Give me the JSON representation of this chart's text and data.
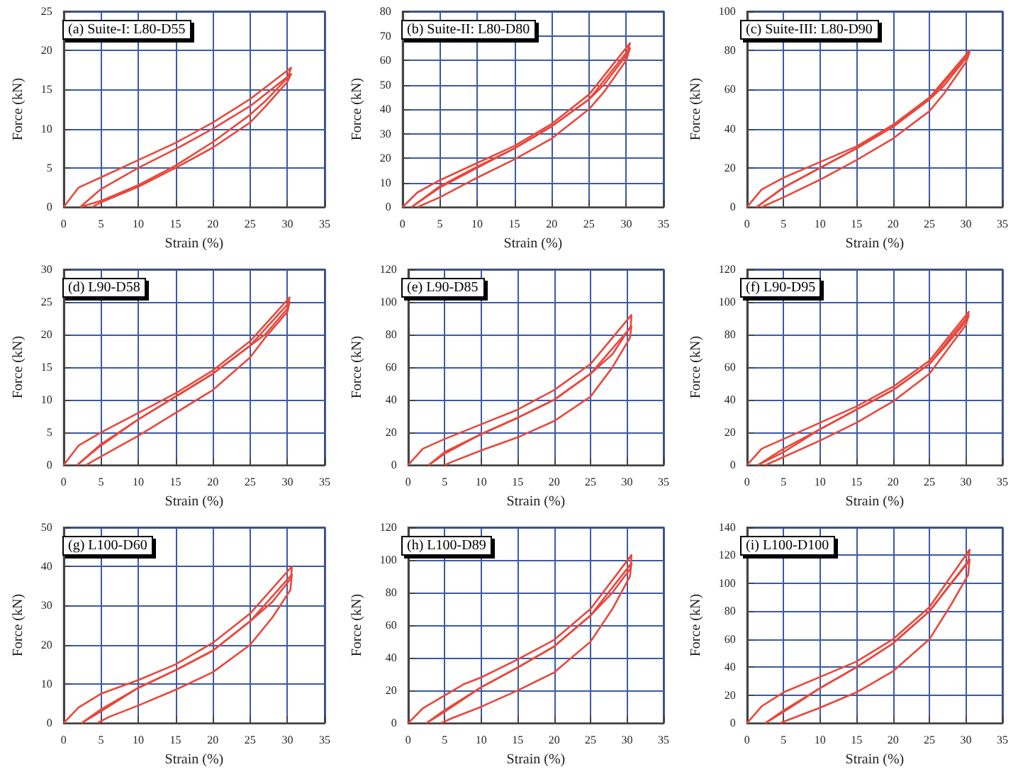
{
  "chart_data": [
    {
      "type": "line",
      "title": "(a) Suite-I: L80-D55",
      "xlabel": "Strain (%)",
      "ylabel": "Force (kN)",
      "xlim": [
        0,
        35
      ],
      "xticks": [
        0,
        5,
        10,
        15,
        20,
        25,
        30,
        35
      ],
      "ylim": [
        0,
        25
      ],
      "yticks": [
        0,
        5,
        10,
        15,
        20,
        25
      ],
      "grid": true,
      "marker": "none",
      "series": [
        {
          "color": "#e8483c",
          "x": [
            0,
            2,
            5,
            10,
            15,
            20,
            25,
            30.5,
            30,
            27,
            25,
            20,
            15,
            10,
            5,
            2.2
          ],
          "values": [
            0,
            2.5,
            3.8,
            6,
            8.2,
            10.8,
            13.8,
            17.8,
            16.5,
            13.5,
            11.8,
            8.3,
            5.3,
            2.8,
            0.8,
            0
          ]
        },
        {
          "color": "#e8483c",
          "x": [
            2.2,
            5,
            10,
            15,
            20,
            25,
            30.5,
            30,
            27,
            25,
            20,
            15,
            10,
            5,
            3.8
          ],
          "values": [
            0,
            2.3,
            5,
            7.4,
            10,
            12.9,
            17,
            16,
            12.8,
            10.8,
            7.6,
            5,
            2.6,
            0.6,
            0
          ]
        }
      ]
    },
    {
      "type": "line",
      "title": "(b) Suite-II: L80-D80",
      "xlabel": "Strain (%)",
      "ylabel": "Force (kN)",
      "xlim": [
        0,
        35
      ],
      "xticks": [
        0,
        5,
        10,
        15,
        20,
        25,
        30,
        35
      ],
      "ylim": [
        0,
        80
      ],
      "yticks": [
        0,
        10,
        20,
        30,
        40,
        50,
        60,
        70,
        80
      ],
      "grid": true,
      "marker": "none",
      "series": [
        {
          "color": "#e8483c",
          "x": [
            0,
            2,
            5,
            10,
            15,
            20,
            25,
            30.5,
            30,
            27,
            25,
            20,
            15,
            10,
            5,
            1.2
          ],
          "values": [
            0,
            6,
            11,
            18,
            25,
            34,
            46,
            67,
            62,
            50,
            44,
            33,
            24,
            16,
            8,
            0
          ]
        },
        {
          "color": "#e8483c",
          "x": [
            1.2,
            5,
            10,
            15,
            20,
            25,
            30.5,
            30,
            27,
            25,
            20,
            15,
            10,
            5,
            2
          ],
          "values": [
            0,
            8.5,
            16.5,
            24,
            33,
            44,
            65,
            60,
            47,
            40,
            28,
            19.5,
            12,
            4,
            0
          ]
        }
      ]
    },
    {
      "type": "line",
      "title": "(c) Suite-III: L80-D90",
      "xlabel": "Strain (%)",
      "ylabel": "Force (kN)",
      "xlim": [
        0,
        35
      ],
      "xticks": [
        0,
        5,
        10,
        15,
        20,
        25,
        30,
        35
      ],
      "ylim": [
        0,
        100
      ],
      "yticks": [
        0,
        20,
        40,
        60,
        80,
        100
      ],
      "grid": true,
      "marker": "none",
      "series": [
        {
          "color": "#e8483c",
          "x": [
            0,
            2,
            5,
            10,
            15,
            20,
            25,
            30.5,
            30,
            27,
            25,
            20,
            15,
            10,
            5,
            1.3
          ],
          "values": [
            0,
            9,
            15,
            23,
            31,
            42,
            56,
            80,
            76,
            62,
            55,
            41,
            30,
            20,
            10,
            0
          ]
        },
        {
          "color": "#e8483c",
          "x": [
            1.3,
            5,
            10,
            15,
            20,
            25,
            30.5,
            30,
            27,
            25,
            20,
            15,
            10,
            5,
            2
          ],
          "values": [
            0,
            10,
            20,
            30,
            41,
            55,
            79,
            74,
            58,
            49,
            35,
            24,
            14,
            5,
            0
          ]
        }
      ]
    },
    {
      "type": "line",
      "title": "(d) L90-D58",
      "xlabel": "Strain (%)",
      "ylabel": "Force (kN)",
      "xlim": [
        0,
        35
      ],
      "xticks": [
        0,
        5,
        10,
        15,
        20,
        25,
        30,
        35
      ],
      "ylim": [
        0,
        30
      ],
      "yticks": [
        0,
        5,
        10,
        15,
        20,
        25,
        30
      ],
      "grid": true,
      "marker": "none",
      "series": [
        {
          "color": "#e8483c",
          "x": [
            0,
            2,
            5,
            10,
            15,
            20,
            25,
            30.3,
            30,
            27,
            25,
            20,
            15,
            10,
            5,
            1.8
          ],
          "values": [
            0,
            3,
            5,
            8,
            11,
            14.5,
            19,
            25.7,
            24,
            20,
            18.3,
            14,
            10.5,
            7,
            3,
            0
          ]
        },
        {
          "color": "#e8483c",
          "x": [
            1.8,
            5,
            10,
            15,
            20,
            25,
            30.3,
            30,
            27,
            25,
            20,
            15,
            10,
            5,
            3
          ],
          "values": [
            0,
            3.2,
            7,
            10.5,
            14,
            18.3,
            25,
            23.5,
            19.5,
            16.5,
            11.5,
            8,
            4.5,
            1.3,
            0
          ]
        }
      ]
    },
    {
      "type": "line",
      "title": "(e) L90-D85",
      "xlabel": "Strain (%)",
      "ylabel": "Force (kN)",
      "xlim": [
        0,
        35
      ],
      "xticks": [
        0,
        5,
        10,
        15,
        20,
        25,
        30,
        35
      ],
      "ylim": [
        0,
        120
      ],
      "yticks": [
        0,
        20,
        40,
        60,
        80,
        100,
        120
      ],
      "grid": true,
      "marker": "none",
      "series": [
        {
          "color": "#e8483c",
          "x": [
            0,
            2,
            5,
            10,
            15,
            20,
            25,
            30.6,
            30.5,
            28,
            25,
            20,
            15,
            10,
            5,
            2.8
          ],
          "values": [
            0,
            10,
            16,
            25,
            34,
            46,
            62,
            92,
            85,
            68,
            56,
            40,
            29,
            19,
            7,
            0
          ]
        },
        {
          "color": "#e8483c",
          "x": [
            2.8,
            5,
            10,
            15,
            20,
            25,
            30.6,
            30.4,
            28,
            25,
            20,
            15,
            10,
            6,
            5
          ],
          "values": [
            0,
            8,
            19,
            29,
            40,
            56,
            85,
            78,
            60,
            42,
            27,
            17,
            9,
            2,
            0
          ]
        }
      ]
    },
    {
      "type": "line",
      "title": "(f) L90-D95",
      "xlabel": "Strain (%)",
      "ylabel": "Force (kN)",
      "xlim": [
        0,
        35
      ],
      "xticks": [
        0,
        5,
        10,
        15,
        20,
        25,
        30,
        35
      ],
      "ylim": [
        0,
        120
      ],
      "yticks": [
        0,
        20,
        40,
        60,
        80,
        100,
        120
      ],
      "grid": true,
      "marker": "none",
      "series": [
        {
          "color": "#e8483c",
          "x": [
            0,
            2,
            5,
            10,
            15,
            20,
            25,
            30.4,
            30,
            27,
            25,
            20,
            15,
            10,
            5,
            1.5
          ],
          "values": [
            0,
            10,
            16,
            26,
            36,
            48,
            64,
            94,
            88,
            72,
            62,
            46,
            34,
            22,
            8,
            0
          ]
        },
        {
          "color": "#e8483c",
          "x": [
            1.5,
            5,
            10,
            15,
            20,
            25,
            30.4,
            30,
            27,
            25,
            20,
            15,
            10,
            5,
            2.5
          ],
          "values": [
            0,
            10,
            22,
            34,
            46,
            62,
            92,
            86,
            68,
            56,
            39,
            26,
            15,
            5,
            0
          ]
        }
      ]
    },
    {
      "type": "line",
      "title": "(g) L100-D60",
      "xlabel": "Strain (%)",
      "ylabel": "Force (kN)",
      "xlim": [
        0,
        35
      ],
      "xticks": [
        0,
        5,
        10,
        15,
        20,
        25,
        30,
        35
      ],
      "ylim": [
        0,
        50
      ],
      "yticks": [
        0,
        10,
        20,
        30,
        40,
        50
      ],
      "grid": true,
      "marker": "none",
      "series": [
        {
          "color": "#e8483c",
          "x": [
            0,
            2,
            5,
            10,
            15,
            20,
            25,
            30.6,
            30.5,
            28,
            25,
            20,
            15,
            10,
            5,
            2.4
          ],
          "values": [
            0,
            4,
            7.5,
            11,
            15,
            20.5,
            28,
            40,
            37,
            31,
            26,
            18.5,
            13.5,
            9,
            3,
            0
          ]
        },
        {
          "color": "#e8483c",
          "x": [
            2.4,
            5,
            10,
            15,
            20,
            25,
            30.6,
            30.4,
            28,
            25,
            20,
            15,
            10,
            6,
            4.5
          ],
          "values": [
            0,
            3.5,
            9,
            13.5,
            18.5,
            26,
            38,
            34,
            27,
            20,
            13,
            8.5,
            4.5,
            1.5,
            0
          ]
        }
      ]
    },
    {
      "type": "line",
      "title": "(h) L100-D89",
      "xlabel": "Strain (%)",
      "ylabel": "Force (kN)",
      "xlim": [
        0,
        35
      ],
      "xticks": [
        0,
        5,
        10,
        15,
        20,
        25,
        30,
        35
      ],
      "ylim": [
        0,
        120
      ],
      "yticks": [
        0,
        20,
        40,
        60,
        80,
        100,
        120
      ],
      "grid": true,
      "marker": "none",
      "series": [
        {
          "color": "#e8483c",
          "x": [
            0,
            2,
            5,
            7.7,
            10,
            15,
            20,
            25,
            30.6,
            30.5,
            28,
            25,
            20,
            15,
            10,
            5,
            2.5
          ],
          "values": [
            0,
            9,
            17,
            24,
            28,
            39,
            51,
            70,
            103,
            95,
            80,
            66,
            47,
            34,
            22,
            7,
            0
          ]
        },
        {
          "color": "#e8483c",
          "x": [
            2.5,
            5,
            10,
            15,
            20,
            25,
            30.6,
            30.4,
            28,
            25,
            20,
            15,
            10,
            6,
            4.5
          ],
          "values": [
            0,
            8,
            22,
            34,
            47,
            66,
            98,
            90,
            70,
            50,
            31,
            20,
            10,
            3,
            0
          ]
        }
      ]
    },
    {
      "type": "line",
      "title": "(i) L100-D100",
      "xlabel": "Strain (%)",
      "ylabel": "Force (kN)",
      "xlim": [
        0,
        35
      ],
      "xticks": [
        0,
        5,
        10,
        15,
        20,
        25,
        30,
        35
      ],
      "ylim": [
        0,
        140
      ],
      "yticks": [
        0,
        20,
        40,
        60,
        80,
        100,
        120,
        140
      ],
      "grid": true,
      "marker": "none",
      "series": [
        {
          "color": "#e8483c",
          "x": [
            0,
            2,
            5,
            10,
            15,
            20,
            25,
            30.5,
            30.3,
            28,
            25,
            20,
            15,
            10,
            5,
            2.5
          ],
          "values": [
            0,
            12,
            22,
            33,
            44,
            60,
            83,
            124,
            115,
            100,
            80,
            57,
            40,
            25,
            8,
            0
          ]
        },
        {
          "color": "#e8483c",
          "x": [
            2.5,
            5,
            10,
            15,
            20,
            25,
            30.5,
            30.3,
            28,
            25,
            20,
            15,
            10,
            6,
            4.5
          ],
          "values": [
            0,
            9,
            25,
            40,
            57,
            80,
            117,
            106,
            85,
            60,
            37,
            22,
            11,
            3,
            0
          ]
        }
      ]
    }
  ]
}
